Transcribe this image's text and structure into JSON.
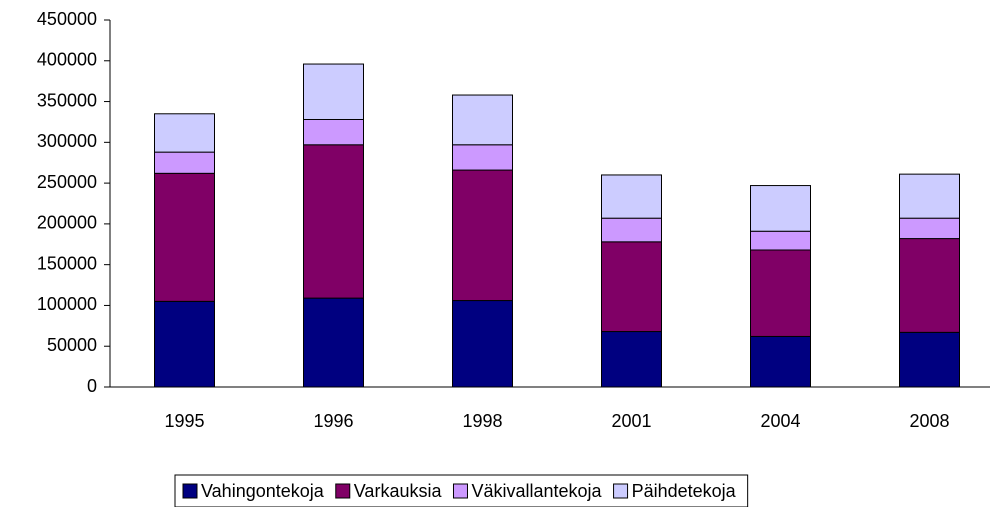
{
  "chart_data": {
    "type": "stacked_bar",
    "categories": [
      "1995",
      "1996",
      "1998",
      "2001",
      "2004",
      "2008"
    ],
    "series": [
      {
        "name": "Vahingontekoja",
        "color": "#000080",
        "values": [
          105000,
          109000,
          106000,
          68000,
          62000,
          67000
        ]
      },
      {
        "name": "Varkauksia",
        "color": "#800066",
        "values": [
          157000,
          188000,
          160000,
          110000,
          106000,
          115000
        ]
      },
      {
        "name": "Väkivallantekoja",
        "color": "#cc99ff",
        "values": [
          26000,
          31000,
          31000,
          29000,
          23000,
          25000
        ]
      },
      {
        "name": "Päihdetekoja",
        "color": "#ccccff",
        "values": [
          47000,
          68000,
          61000,
          53000,
          56000,
          54000
        ]
      }
    ],
    "ylim": [
      0,
      450000
    ],
    "yticks": [
      0,
      50000,
      100000,
      150000,
      200000,
      250000,
      300000,
      350000,
      400000,
      450000
    ],
    "legend": "bottom"
  }
}
